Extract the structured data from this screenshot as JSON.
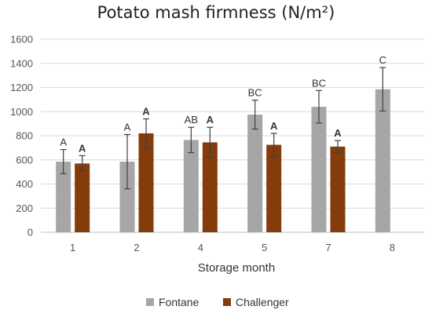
{
  "chart_data": {
    "type": "bar",
    "title": "Potato mash firmness (N/m²)",
    "xlabel": "Storage month",
    "ylabel": "",
    "categories": [
      "1",
      "2",
      "4",
      "5",
      "7",
      "8"
    ],
    "ylim": [
      0,
      1600
    ],
    "yticks": [
      0,
      200,
      400,
      600,
      800,
      1000,
      1200,
      1400,
      1600
    ],
    "grid": true,
    "legend_position": "bottom",
    "series": [
      {
        "name": "Fontane",
        "color": "#a6a6a6",
        "values": [
          585,
          585,
          765,
          975,
          1040,
          1185
        ],
        "error": [
          100,
          225,
          105,
          120,
          135,
          180
        ],
        "labels": [
          "A",
          "A",
          "AB",
          "BC",
          "BC",
          "C"
        ]
      },
      {
        "name": "Challenger",
        "color": "#843c0c",
        "values": [
          570,
          820,
          745,
          725,
          710,
          null
        ],
        "error": [
          65,
          120,
          125,
          95,
          50,
          null
        ],
        "labels": [
          "A",
          "A",
          "A",
          "A",
          "A",
          ""
        ]
      }
    ]
  }
}
